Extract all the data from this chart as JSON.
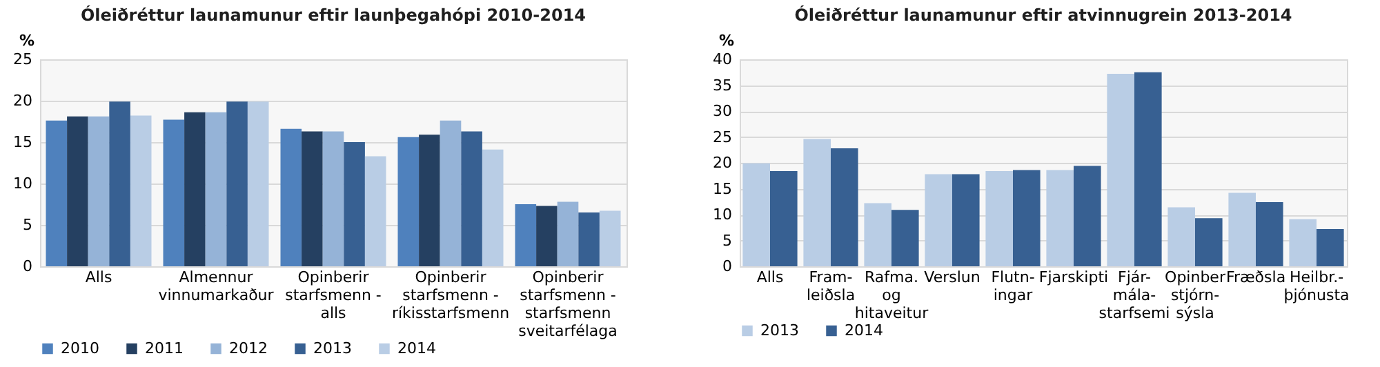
{
  "chart_data": [
    {
      "type": "bar",
      "title": "Óleiðréttur launamunur eftir launþegahópi 2010-2014",
      "ylabel": "%",
      "categories": [
        "Alls",
        "Almennur\nvinnumarkaður",
        "Opinberir\nstarfsmenn -\nalls",
        "Opinberir\nstarfsmenn -\nríkisstarfsmenn",
        "Opinberir\nstarfsmenn -\nstarfsmenn\nsveitarfélaga"
      ],
      "series": [
        {
          "name": "2010",
          "color": "#4f81bd",
          "values": [
            17.6,
            17.7,
            16.6,
            15.6,
            7.5
          ]
        },
        {
          "name": "2011",
          "color": "#254061",
          "values": [
            18.1,
            18.6,
            16.3,
            15.9,
            7.3
          ]
        },
        {
          "name": "2012",
          "color": "#95b3d7",
          "values": [
            18.1,
            18.6,
            16.3,
            17.6,
            7.8
          ]
        },
        {
          "name": "2013",
          "color": "#376092",
          "values": [
            19.9,
            19.9,
            15.0,
            16.3,
            6.5
          ]
        },
        {
          "name": "2014",
          "color": "#b9cde5",
          "values": [
            18.2,
            19.9,
            13.3,
            14.1,
            6.7
          ]
        }
      ],
      "ylim": [
        0,
        25
      ],
      "yticks": [
        0,
        5,
        10,
        15,
        20,
        25
      ],
      "grid": "y",
      "legend": "bottom"
    },
    {
      "type": "bar",
      "title": "Óleiðréttur launamunur eftir atvinnugrein 2013-2014",
      "ylabel": "%",
      "categories": [
        "Alls",
        "Fram-\nleiðsla",
        "Rafma.\nog\nhitaveitur",
        "Verslun",
        "Flutn-\ningar",
        "Fjarskipti",
        "Fjár-\nmála-\nstarfsemi",
        "Opinber\nstjórn-\nsýsla",
        "Fræðsla",
        "Heilbr.-\nþjónusta"
      ],
      "series": [
        {
          "name": "2013",
          "color": "#b9cde5",
          "values": [
            19.9,
            24.6,
            12.2,
            17.8,
            18.4,
            18.6,
            37.2,
            11.4,
            14.2,
            9.1
          ]
        },
        {
          "name": "2014",
          "color": "#376092",
          "values": [
            18.4,
            22.8,
            10.9,
            17.8,
            18.6,
            19.4,
            37.5,
            9.3,
            12.4,
            7.2
          ]
        }
      ],
      "ylim": [
        0,
        40
      ],
      "yticks": [
        0,
        5,
        10,
        15,
        20,
        25,
        30,
        35,
        40
      ],
      "grid": "y",
      "legend": "bottom"
    }
  ]
}
